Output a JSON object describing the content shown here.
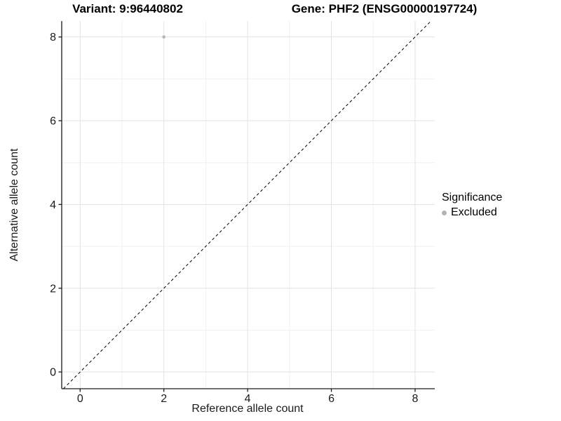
{
  "titles": {
    "variant": "Variant: 9:96440802",
    "gene": "Gene: PHF2 (ENSG00000197724)"
  },
  "axes": {
    "x_label": "Reference allele count",
    "y_label": "Alternative allele count"
  },
  "legend": {
    "title": "Significance",
    "items": [
      {
        "label": "Excluded",
        "color": "#b3b3b3"
      }
    ]
  },
  "colors": {
    "background": "#ffffff",
    "axis_line": "#1a1a1a",
    "major_grid": "#e2e2e2",
    "minor_grid": "#f0f0f0",
    "reference_line": "#000000",
    "point": "#b3b3b3"
  },
  "chart_data": {
    "type": "scatter",
    "title": "Variant: 9:96440802   Gene: PHF2 (ENSG00000197724)",
    "xlabel": "Reference allele count",
    "ylabel": "Alternative allele count",
    "xlim": [
      -0.44,
      8.47
    ],
    "ylim": [
      -0.4,
      8.38
    ],
    "x_ticks": [
      0,
      2,
      4,
      6,
      8
    ],
    "y_ticks": [
      0,
      2,
      4,
      6,
      8
    ],
    "x_minor_ticks": [
      1,
      3,
      5,
      7
    ],
    "y_minor_ticks": [
      1,
      3,
      5,
      7
    ],
    "grid": true,
    "legend_position": "right",
    "reference_line": {
      "kind": "identity",
      "equation": "y = x",
      "style": "dashed",
      "color": "#000000"
    },
    "series": [
      {
        "name": "Excluded",
        "color": "#b3b3b3",
        "point_radius": 2.3,
        "points": [
          {
            "x": 2,
            "y": 8
          }
        ]
      }
    ]
  }
}
